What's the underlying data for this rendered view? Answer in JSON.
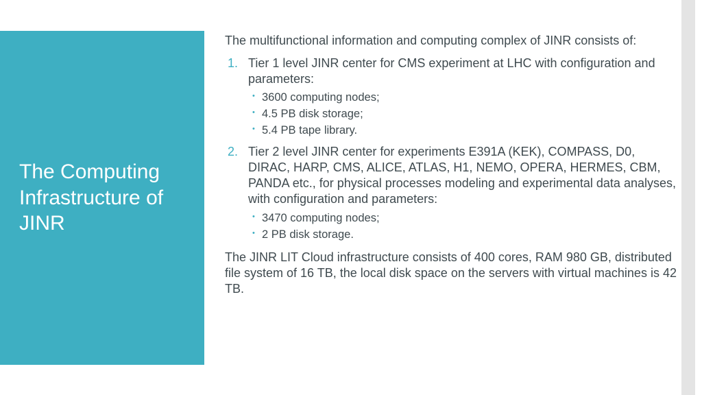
{
  "colors": {
    "accent": "#3eafc2",
    "text": "#3f4a4f",
    "title": "#ffffff",
    "background": "#ffffff",
    "rightbar": "#e4e4e4"
  },
  "sidebar": {
    "title": "The Computing Infrastructure of JINR"
  },
  "content": {
    "intro": "The multifunctional information and computing complex of JINR consists of:",
    "items": [
      {
        "text": "Tier 1 level JINR center for CMS experiment at LHC with configuration and parameters:",
        "sub": [
          "3600 computing nodes;",
          "4.5 PB disk storage;",
          "5.4 PB tape library."
        ]
      },
      {
        "text": "Tier 2 level JINR center for experiments E391A (KEK), COMPASS, D0, DIRAC, HARP, CMS, ALICE, ATLAS, H1, NEMO, OPERA, HERMES, CBM, PANDA etc., for physical processes modeling and experimental data analyses, with configuration and parameters:",
        "sub": [
          "3470 computing nodes;",
          "2 PB disk storage."
        ]
      }
    ],
    "closing": "The JINR LIT Cloud infrastructure consists of 400 cores, RAM 980 GB, distributed file system of 16 TB, the local disk space on the servers with virtual machines is 42 TB."
  }
}
